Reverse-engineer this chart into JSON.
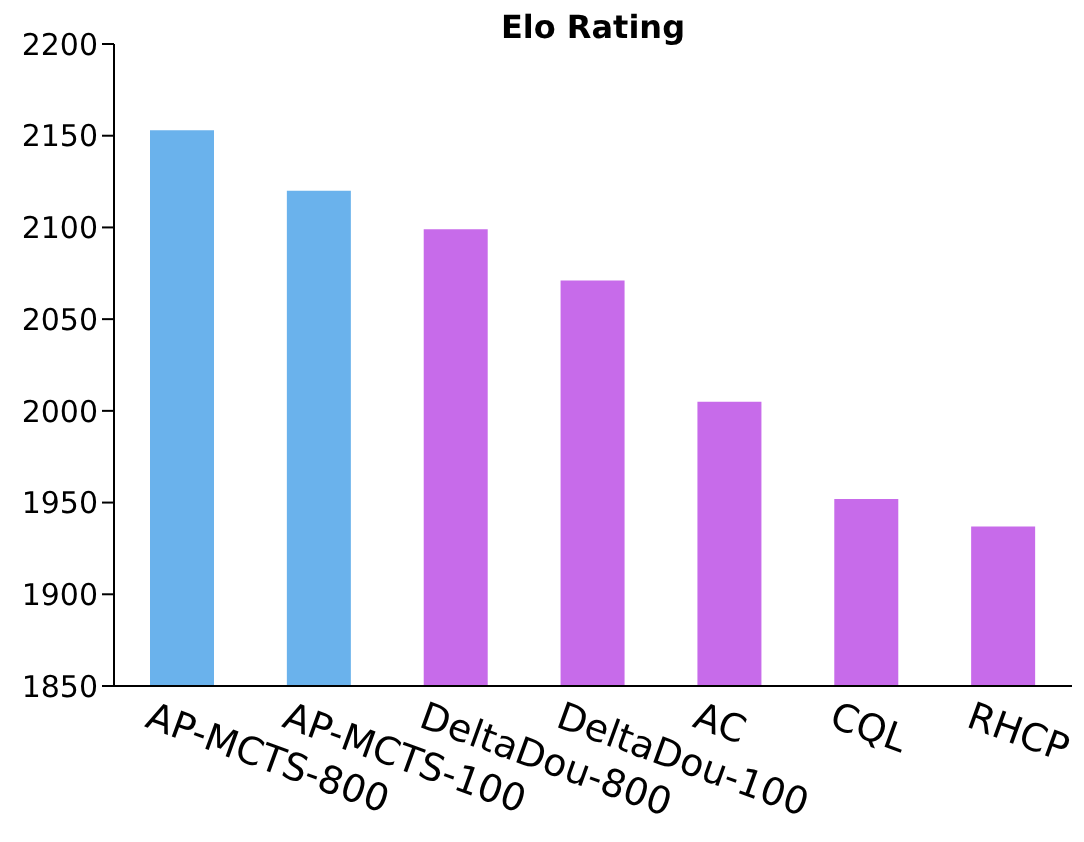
{
  "chart_data": {
    "type": "bar",
    "title": "Elo Rating",
    "categories": [
      "AP-MCTS-800",
      "AP-MCTS-100",
      "DeltaDou-800",
      "DeltaDou-100",
      "AC",
      "CQL",
      "RHCP"
    ],
    "values": [
      2153,
      2120,
      2099,
      2071,
      2005,
      1952,
      1937
    ],
    "colors": [
      "#6ab2ec",
      "#6ab2ec",
      "#c76bea",
      "#c76bea",
      "#c76bea",
      "#c76bea",
      "#c76bea"
    ],
    "ylim": [
      1850,
      2200
    ],
    "yticks": [
      1850,
      1900,
      1950,
      2000,
      2050,
      2100,
      2150,
      2200
    ]
  }
}
